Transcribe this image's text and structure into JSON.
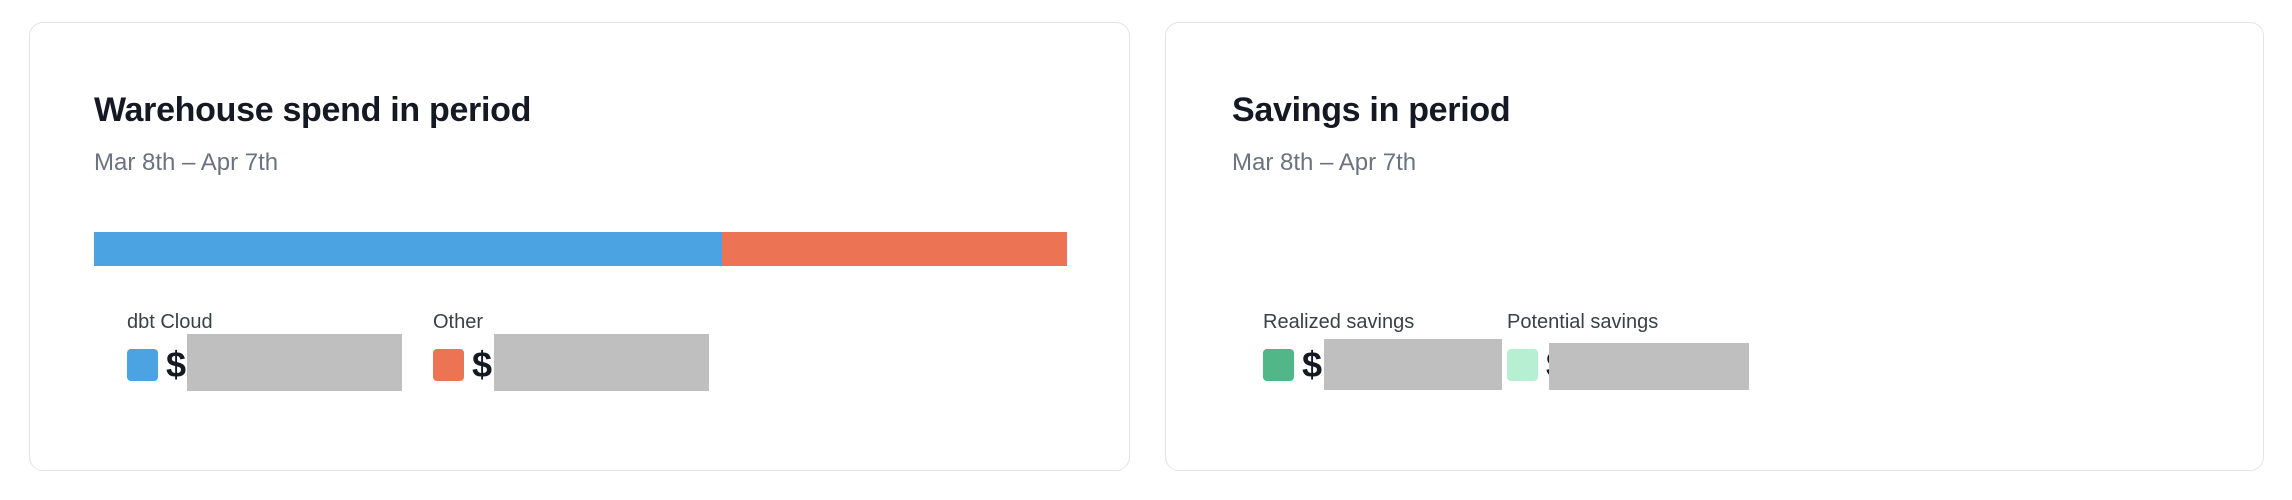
{
  "warehouse_card": {
    "title": "Warehouse spend in period",
    "date_range": "Mar 8th – Apr 7th",
    "bar": {
      "segments": [
        {
          "label": "dbt Cloud",
          "fraction": 0.645,
          "color": "#4ba3e2"
        },
        {
          "label": "Other",
          "fraction": 0.355,
          "color": "#ec7455"
        }
      ]
    },
    "legend": [
      {
        "label": "dbt Cloud",
        "currency": "$",
        "color": "#4ba3e2"
      },
      {
        "label": "Other",
        "currency": "$",
        "color": "#ec7455"
      }
    ]
  },
  "savings_card": {
    "title": "Savings in period",
    "date_range": "Mar 8th – Apr 7th",
    "legend": [
      {
        "label": "Realized savings",
        "currency": "$",
        "color": "#52b788"
      },
      {
        "label": "Potential savings",
        "currency": "$",
        "color": "#b7efd3"
      }
    ]
  },
  "redaction_color": "#bfbfbf"
}
